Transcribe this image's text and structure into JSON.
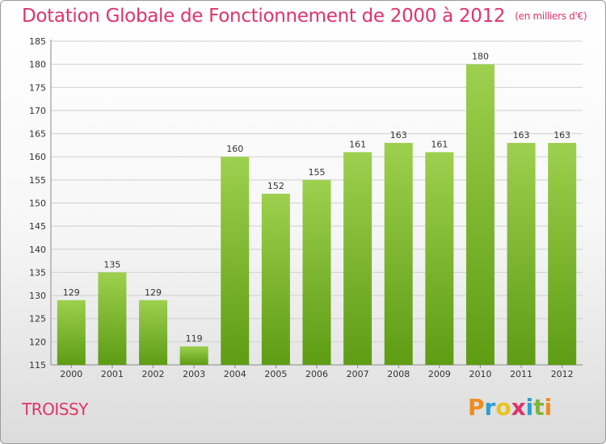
{
  "title": "Dotation Globale de Fonctionnement de 2000 à 2012",
  "subtitle": "(en milliers d'€)",
  "commune": "TROISSY",
  "logo": {
    "letters": [
      "P",
      "r",
      "o",
      "x",
      "i",
      "t",
      "i"
    ],
    "colors": [
      "#f08c1e",
      "#2a9fd6",
      "#e8c21f",
      "#e0336b",
      "#2a9fd6",
      "#7fb539",
      "#f08c1e"
    ]
  },
  "colors": {
    "accent": "#e0336b",
    "bar_light": "#9dd04e",
    "bar_dark": "#5e9c14"
  },
  "chart_data": {
    "type": "bar",
    "title": "Dotation Globale de Fonctionnement de 2000 à 2012",
    "subtitle": "(en milliers d'€)",
    "categories": [
      "2000",
      "2001",
      "2002",
      "2003",
      "2004",
      "2005",
      "2006",
      "2007",
      "2008",
      "2009",
      "2010",
      "2011",
      "2012"
    ],
    "values": [
      129,
      135,
      129,
      119,
      160,
      152,
      155,
      161,
      163,
      161,
      180,
      163,
      163
    ],
    "ylim": [
      115,
      185
    ],
    "yticks": [
      115,
      120,
      125,
      130,
      135,
      140,
      145,
      150,
      155,
      160,
      165,
      170,
      175,
      180,
      185
    ],
    "grid": true,
    "xlabel": "",
    "ylabel": ""
  }
}
